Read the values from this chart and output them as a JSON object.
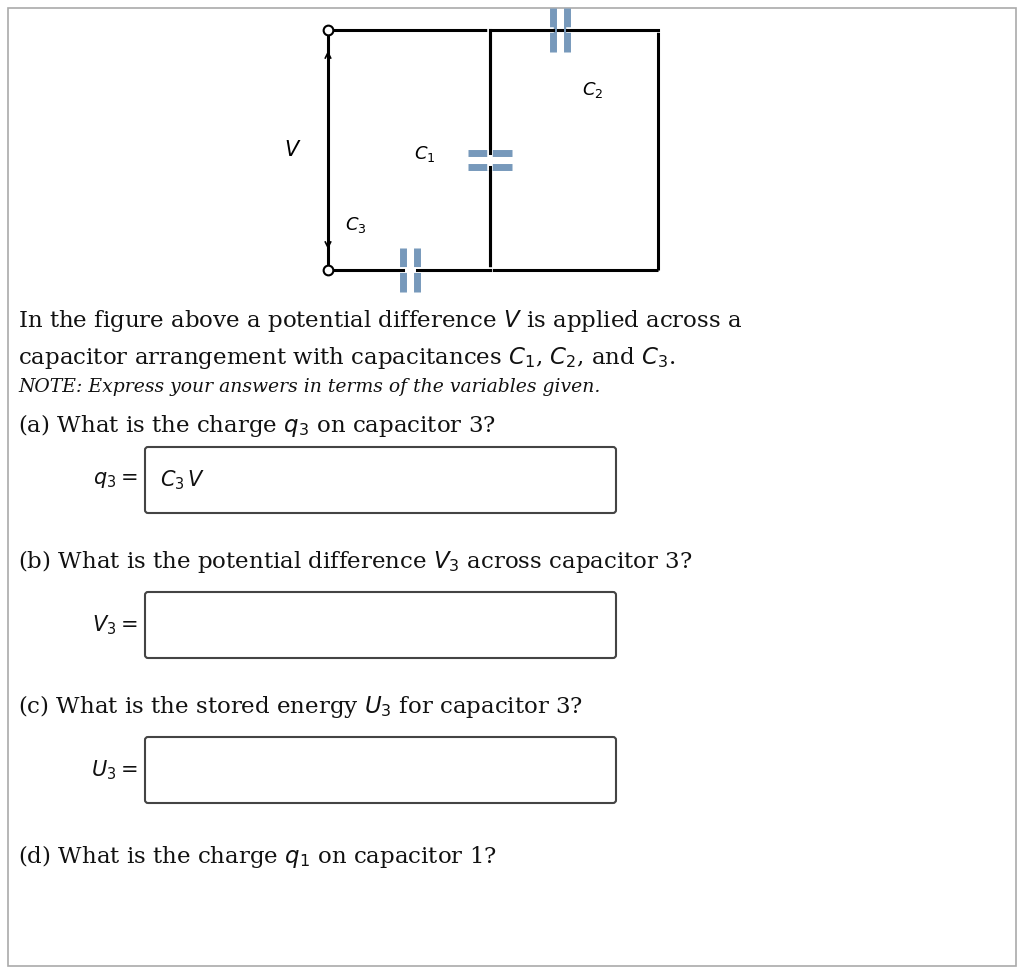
{
  "bg_color": "#ffffff",
  "circuit_color": "#000000",
  "capacitor_color": "#7799bb",
  "fig_width": 10.24,
  "fig_height": 9.74,
  "para1_line1": "In the figure above a potential difference $V$ is applied across a",
  "para1_line2": "capacitor arrangement with capacitances $C_1$, $C_2$, and $C_3$.",
  "note_text": "NOTE: Express your answers in terms of the variables given.",
  "qa_label": "(a) What is the charge $q_3$ on capacitor 3?",
  "qb_label": "(b) What is the potential difference $V_3$ across capacitor 3?",
  "qc_label": "(c) What is the stored energy $U_3$ for capacitor 3?",
  "qd_label": "(d) What is the charge $q_1$ on capacitor 1?"
}
